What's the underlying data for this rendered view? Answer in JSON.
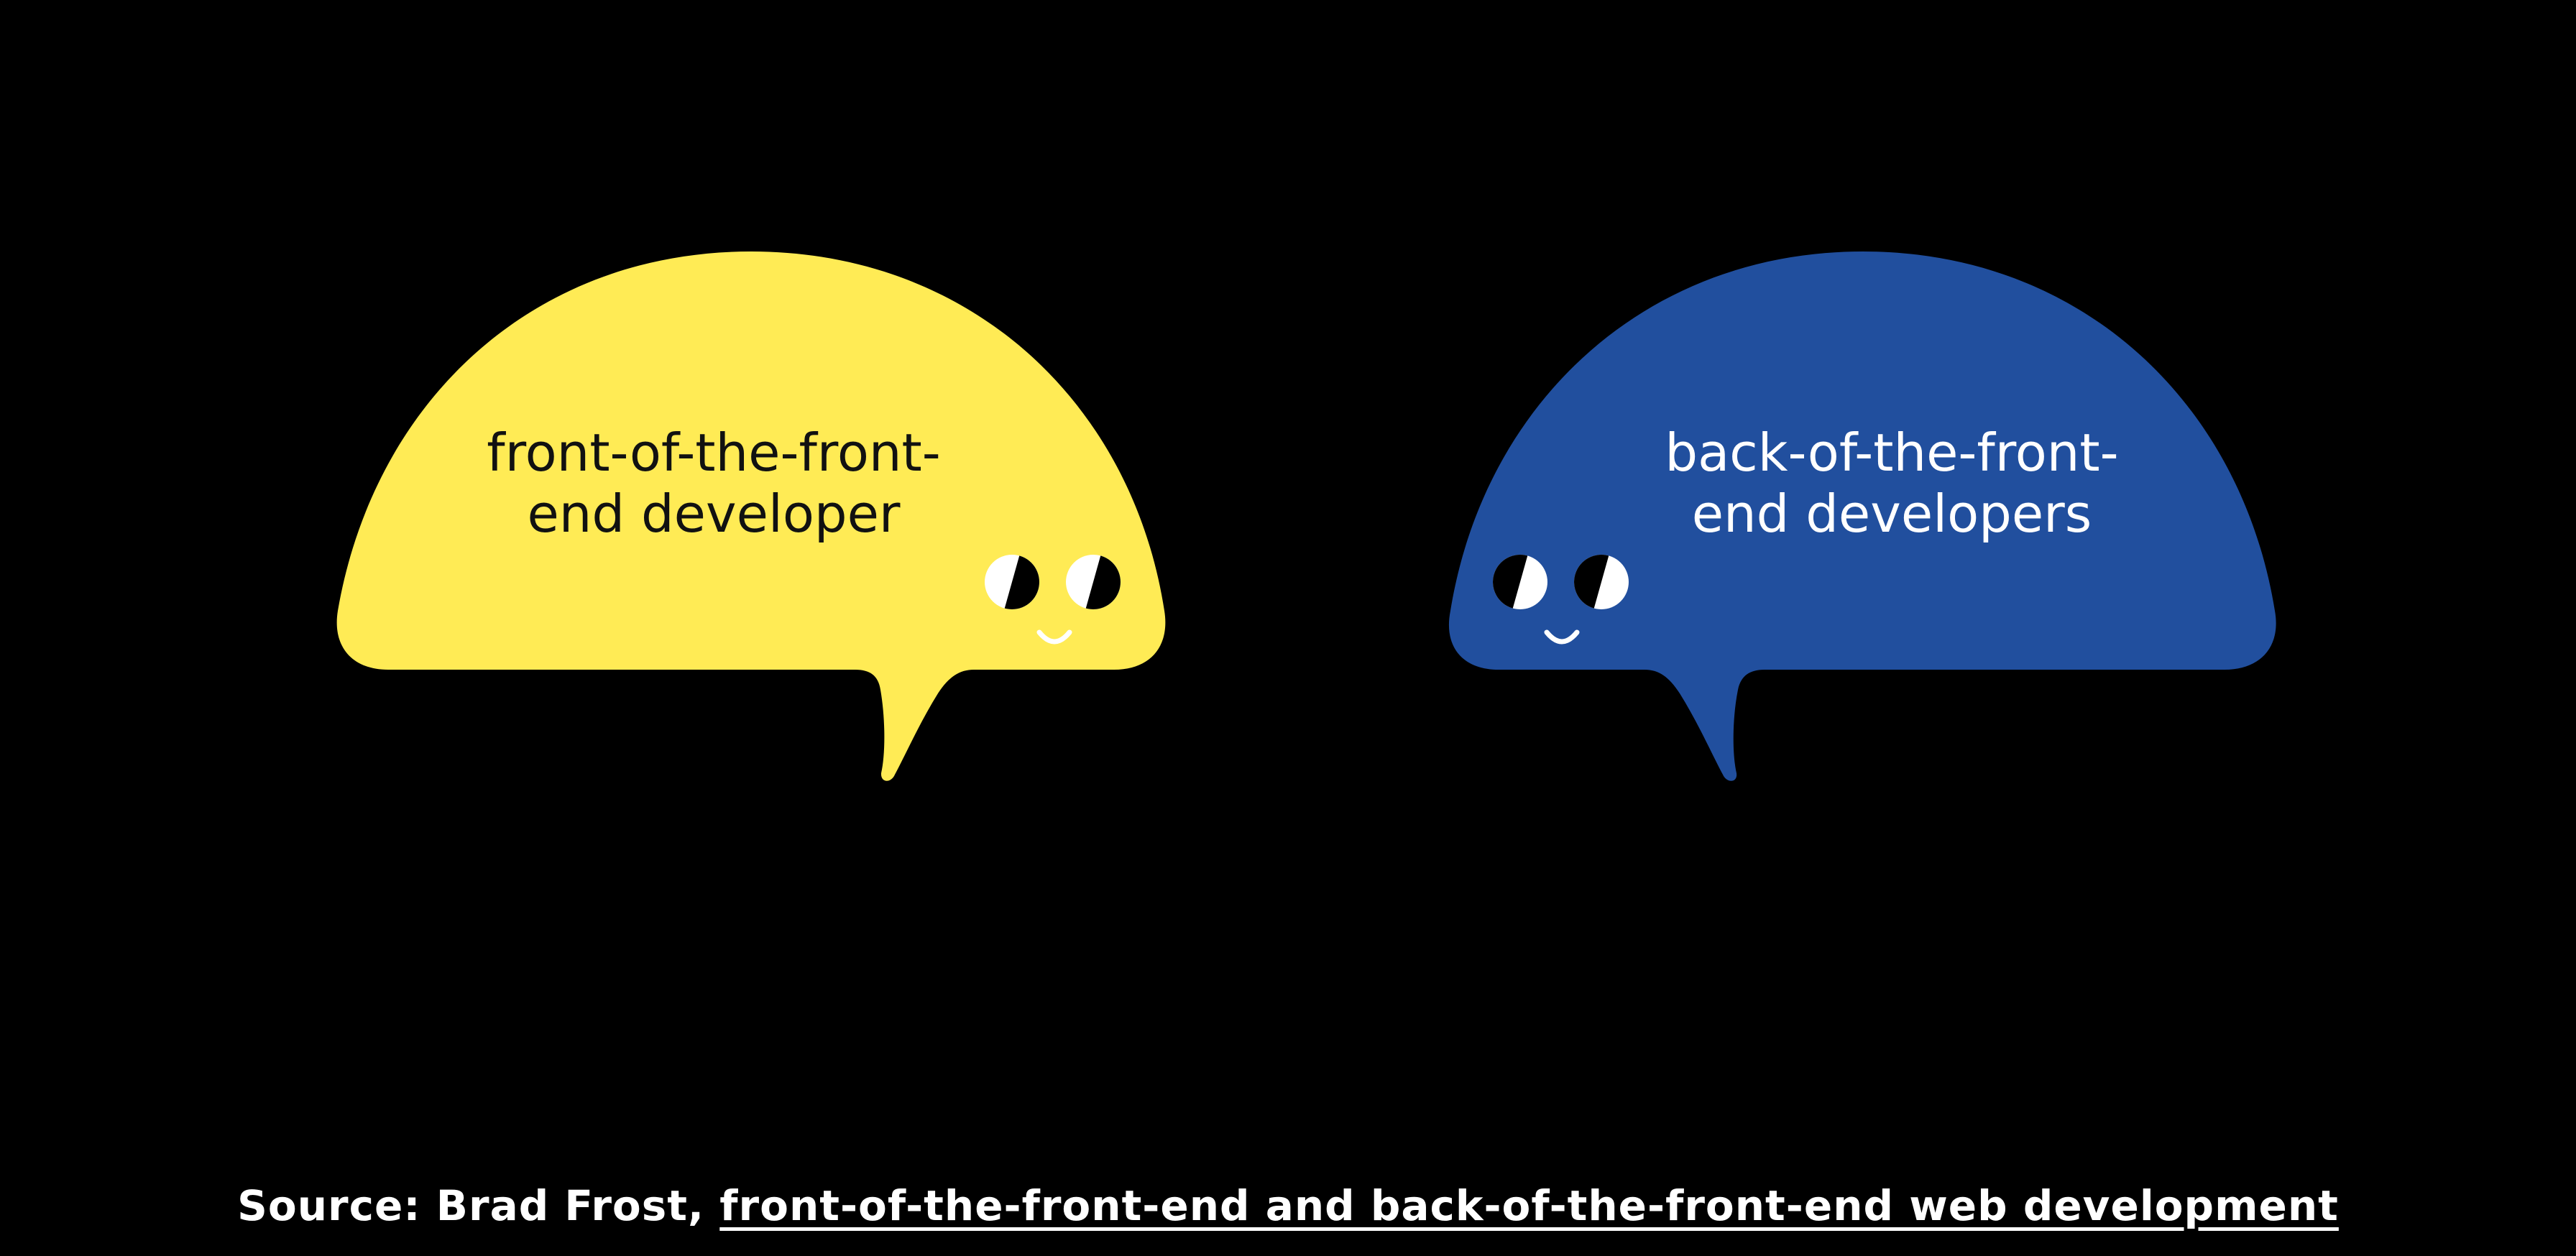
{
  "bubbles": [
    {
      "id": "yellow",
      "label_lines": [
        "front-of-the-front-",
        "end developer"
      ],
      "fill": "#ffeb55",
      "text_color": "#111111",
      "face": "right"
    },
    {
      "id": "blue",
      "label_lines": [
        "back-of-the-front-",
        "end developers"
      ],
      "fill": "#214f9e",
      "text_color": "#ffffff",
      "face": "left"
    }
  ],
  "caption": {
    "prefix": "Source: Brad Frost, ",
    "link_text": "front-of-the-front-end and back-of-the-front-end web development"
  },
  "colors": {
    "background": "#000000",
    "eye_white": "#ffffff",
    "eye_black": "#000000"
  }
}
